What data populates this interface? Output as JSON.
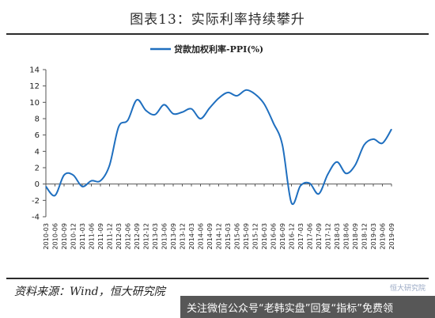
{
  "header": {
    "title": "图表13：实际利率持续攀升"
  },
  "footer": {
    "source": "资料来源：Wind，恒大研究院",
    "watermark": "关注微信公众号“老韩实盘”回复“指标”免费领",
    "watermark_small": "恒大研究院"
  },
  "chart_data": {
    "type": "line",
    "title": "图表13：实际利率持续攀升",
    "xlabel": "",
    "ylabel": "",
    "ylim": [
      -4,
      14
    ],
    "yticks": [
      -4,
      -2,
      0,
      2,
      4,
      6,
      8,
      10,
      12,
      14
    ],
    "grid": false,
    "legend_position": "top-center",
    "series": [
      {
        "name": "贷款加权利率-PPI(%)",
        "color": "#1f6fbf",
        "x": [
          "2010-03",
          "2010-06",
          "2010-09",
          "2010-12",
          "2011-03",
          "2011-06",
          "2011-09",
          "2011-12",
          "2012-03",
          "2012-06",
          "2012-09",
          "2012-12",
          "2013-03",
          "2013-06",
          "2013-09",
          "2013-12",
          "2014-03",
          "2014-06",
          "2014-09",
          "2014-12",
          "2015-03",
          "2015-06",
          "2015-09",
          "2015-12",
          "2016-03",
          "2016-06",
          "2016-09",
          "2016-12",
          "2017-03",
          "2017-06",
          "2017-09",
          "2017-12",
          "2018-03",
          "2018-06",
          "2018-09",
          "2018-12",
          "2019-03",
          "2019-06",
          "2019-09"
        ],
        "values": [
          -0.3,
          -1.4,
          1.1,
          1.1,
          -0.3,
          0.4,
          0.4,
          2.3,
          7.0,
          7.8,
          10.3,
          9.0,
          8.5,
          9.7,
          8.6,
          8.8,
          9.2,
          8.0,
          9.3,
          10.5,
          11.2,
          10.8,
          11.5,
          11.0,
          9.8,
          7.5,
          4.8,
          -2.3,
          -0.2,
          0.1,
          -1.2,
          1.2,
          2.7,
          1.3,
          2.3,
          4.8,
          5.5,
          5.0,
          6.7
        ]
      }
    ],
    "x_tick_labels": [
      "2010-03",
      "2010-06",
      "2010-09",
      "2010-12",
      "2011-03",
      "2011-06",
      "2011-09",
      "2011-12",
      "2012-03",
      "2012-06",
      "2012-09",
      "2012-12",
      "2013-03",
      "2013-06",
      "2013-09",
      "2013-12",
      "2014-03",
      "2014-06",
      "2014-09",
      "2014-12",
      "2015-03",
      "2015-06",
      "2015-09",
      "2015-12",
      "2016-03",
      "2016-06",
      "2016-09",
      "2016-12",
      "2017-03",
      "2017-06",
      "2017-09",
      "2017-12",
      "2018-03",
      "2018-06",
      "2018-09",
      "2018-12",
      "2019-03",
      "2019-06",
      "2019-09"
    ]
  }
}
